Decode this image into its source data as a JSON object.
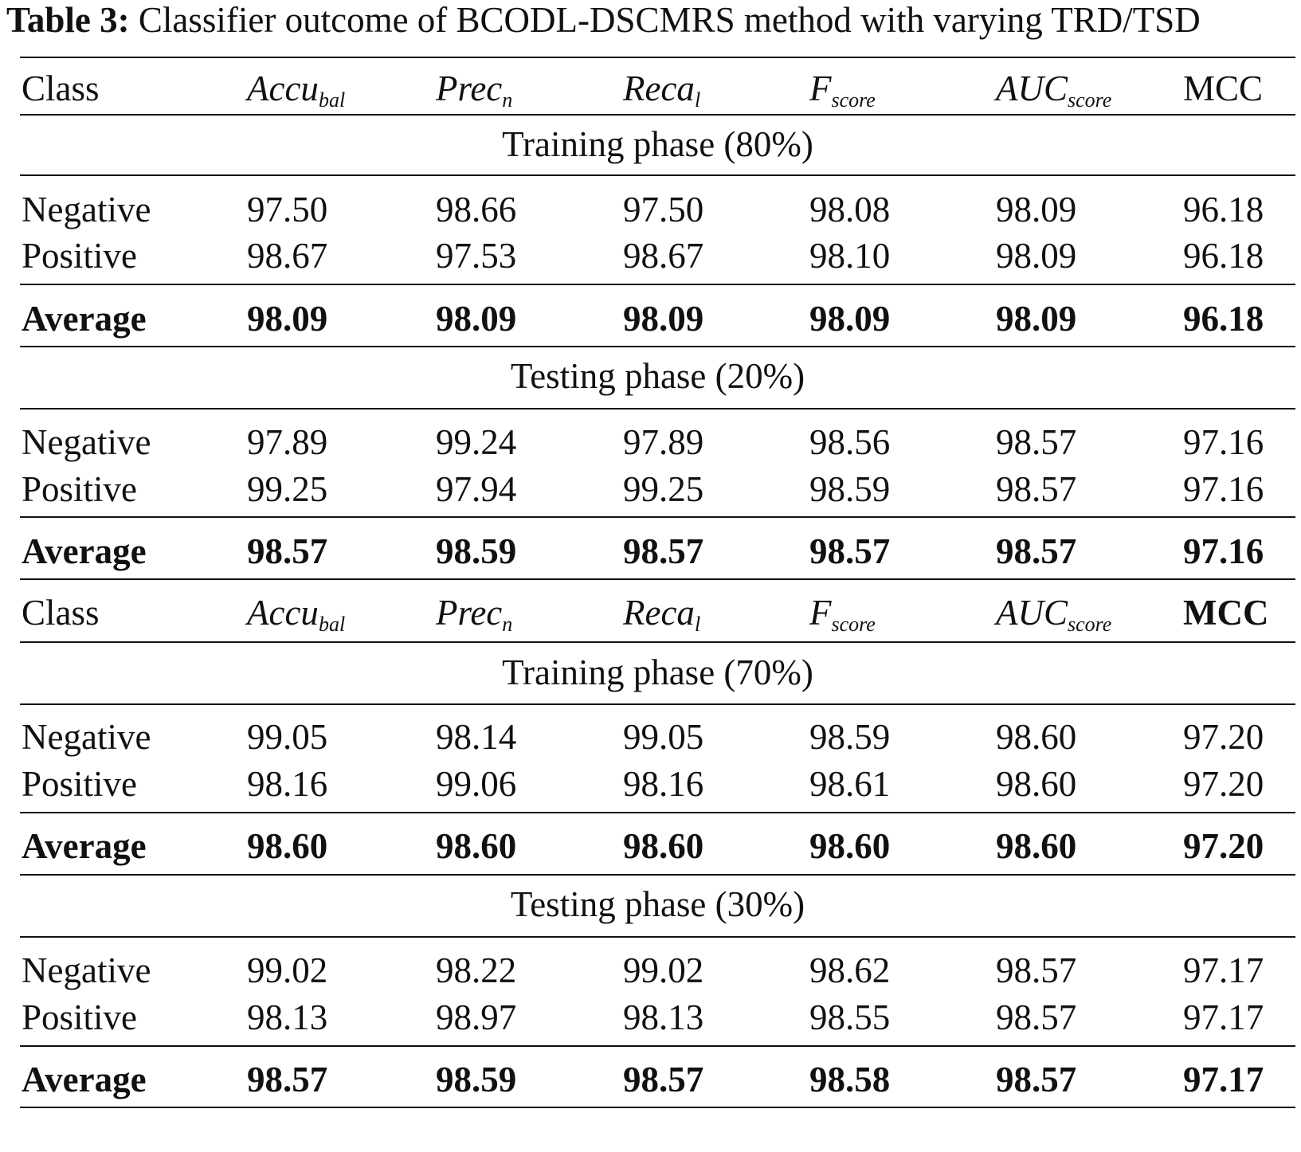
{
  "caption": {
    "label": "Table 3:",
    "text": "Classifier outcome of BCODL-DSCMRS method with varying TRD/TSD"
  },
  "header": {
    "class": "Class",
    "accu": {
      "base": "Accu",
      "sub": "bal"
    },
    "prec": {
      "base": "Prec",
      "sub": "n"
    },
    "reca": {
      "base": "Reca",
      "sub": "l"
    },
    "f": {
      "base": "F",
      "sub": "score"
    },
    "auc": {
      "base": "AUC",
      "sub": "score"
    },
    "mcc": "MCC"
  },
  "blocks": [
    {
      "phase": "Training phase (80%)",
      "rows": [
        [
          "Negative",
          "97.50",
          "98.66",
          "97.50",
          "98.08",
          "98.09",
          "96.18"
        ],
        [
          "Positive",
          "98.67",
          "97.53",
          "98.67",
          "98.10",
          "98.09",
          "96.18"
        ]
      ],
      "average": [
        "Average",
        "98.09",
        "98.09",
        "98.09",
        "98.09",
        "98.09",
        "96.18"
      ]
    },
    {
      "phase": "Testing phase (20%)",
      "rows": [
        [
          "Negative",
          "97.89",
          "99.24",
          "97.89",
          "98.56",
          "98.57",
          "97.16"
        ],
        [
          "Positive",
          "99.25",
          "97.94",
          "99.25",
          "98.59",
          "98.57",
          "97.16"
        ]
      ],
      "average": [
        "Average",
        "98.57",
        "98.59",
        "98.57",
        "98.57",
        "98.57",
        "97.16"
      ]
    },
    {
      "phase": "Training phase (70%)",
      "rows": [
        [
          "Negative",
          "99.05",
          "98.14",
          "99.05",
          "98.59",
          "98.60",
          "97.20"
        ],
        [
          "Positive",
          "98.16",
          "99.06",
          "98.16",
          "98.61",
          "98.60",
          "97.20"
        ]
      ],
      "average": [
        "Average",
        "98.60",
        "98.60",
        "98.60",
        "98.60",
        "98.60",
        "97.20"
      ]
    },
    {
      "phase": "Testing phase (30%)",
      "rows": [
        [
          "Negative",
          "99.02",
          "98.22",
          "99.02",
          "98.62",
          "98.57",
          "97.17"
        ],
        [
          "Positive",
          "98.13",
          "98.97",
          "98.13",
          "98.55",
          "98.57",
          "97.17"
        ]
      ],
      "average": [
        "Average",
        "98.57",
        "98.59",
        "98.57",
        "98.58",
        "98.57",
        "97.17"
      ]
    }
  ]
}
